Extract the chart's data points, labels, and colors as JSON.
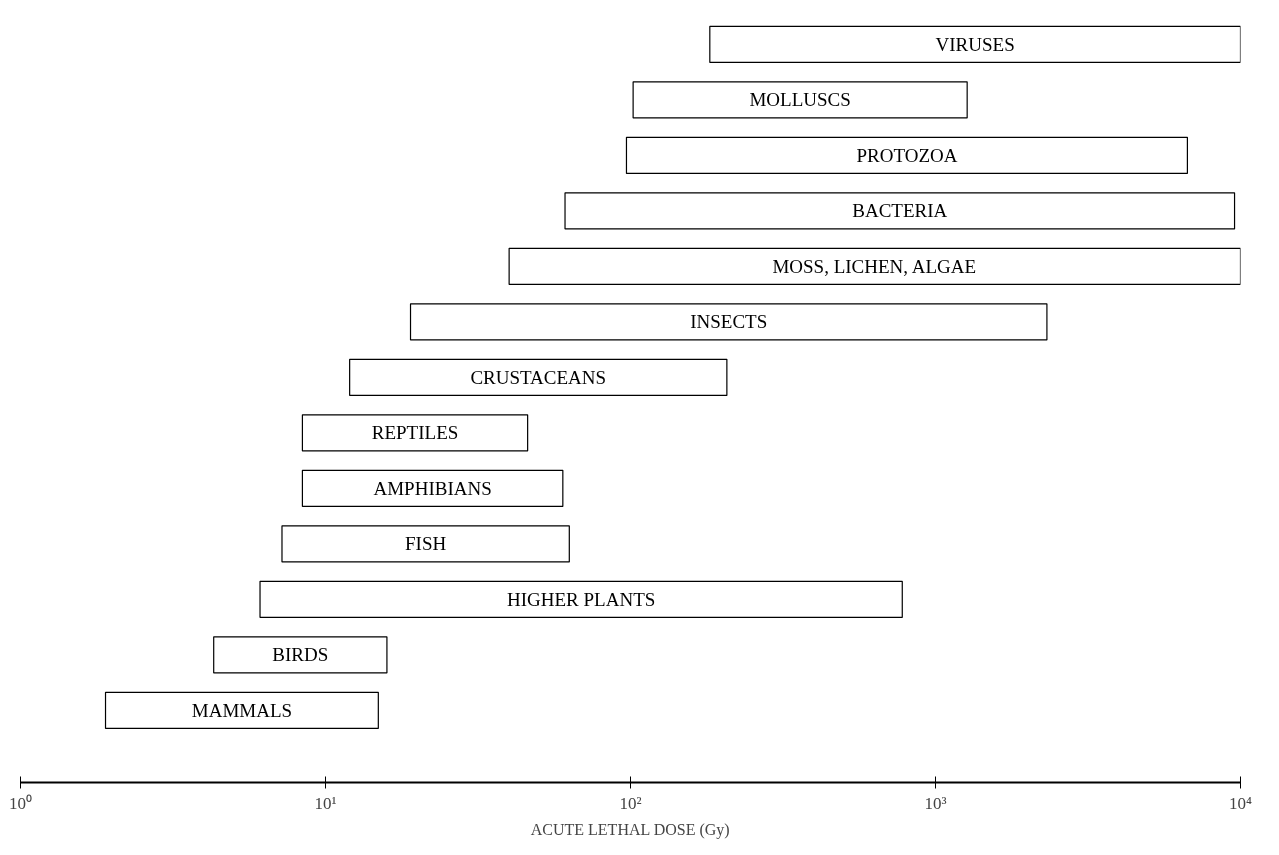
{
  "chart_data": {
    "type": "bar",
    "orientation": "horizontal",
    "xlabel": "ACUTE LETHAL DOSE (Gy)",
    "categories": [
      "VIRUSES",
      "MOLLUSCS",
      "PROTOZOA",
      "BACTERIA",
      "MOSS, LICHEN, ALGAE",
      "INSECTS",
      "CRUSTACEANS",
      "REPTILES",
      "AMPHIBIANS",
      "FISH",
      "HIGHER PLANTS",
      "BIRDS",
      "MAMMALS"
    ],
    "base": [
      182,
      102,
      97,
      61,
      40,
      19,
      12,
      8.4,
      8.4,
      7.2,
      6.1,
      4.3,
      1.9
    ],
    "values": [
      9818,
      1168,
      6600,
      9500,
      9960,
      2300,
      195,
      37.6,
      51.6,
      55.8,
      772,
      11.6,
      13
    ],
    "color": "#ffffff",
    "log": "x",
    "xlim": [
      1,
      10000
    ],
    "xticks": [
      {
        "value": 1,
        "label": "10⁰"
      },
      {
        "value": 10,
        "label": "10¹"
      },
      {
        "value": 100,
        "label": "10²"
      },
      {
        "value": 1000,
        "label": "10³"
      },
      {
        "value": 10000,
        "label": "10⁴"
      }
    ],
    "tick_labels": "x",
    "grid": false
  }
}
